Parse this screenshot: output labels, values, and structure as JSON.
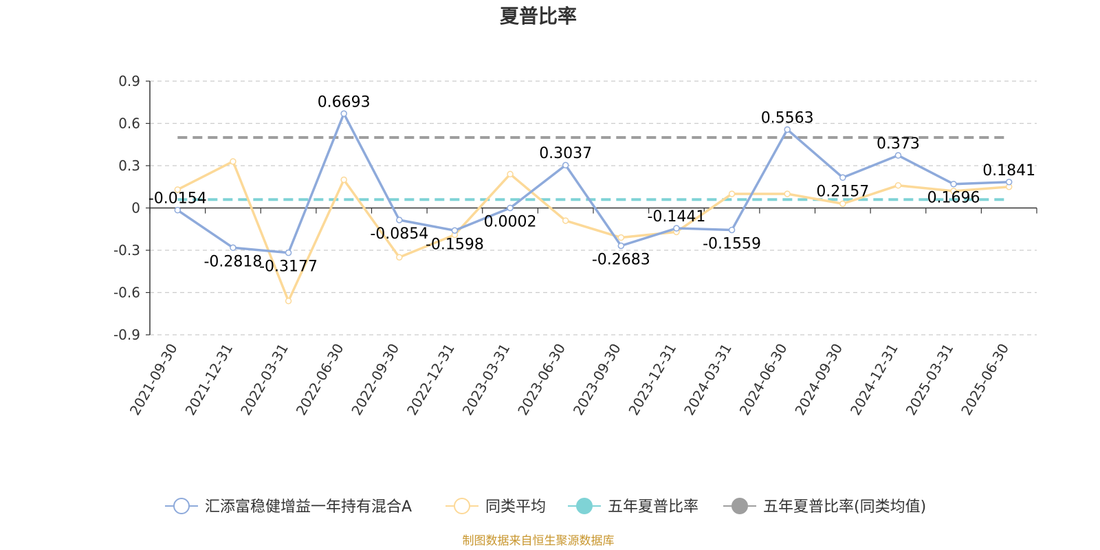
{
  "chart_data": {
    "type": "line",
    "title": "夏普比率",
    "categories": [
      "2021-09-30",
      "2021-12-31",
      "2022-03-31",
      "2022-06-30",
      "2022-09-30",
      "2022-12-31",
      "2023-03-31",
      "2023-06-30",
      "2023-09-30",
      "2023-12-31",
      "2024-03-31",
      "2024-06-30",
      "2024-09-30",
      "2024-12-31",
      "2025-03-31",
      "2025-06-30"
    ],
    "ylim": [
      -0.9,
      0.9
    ],
    "yticks": [
      "0.9",
      "0.6",
      "0.3",
      "0",
      "-0.3",
      "-0.6",
      "-0.9"
    ],
    "ytick_values": [
      0.9,
      0.6,
      0.3,
      0,
      -0.3,
      -0.6,
      -0.9
    ],
    "grid": true,
    "legend_position": "bottom",
    "series": [
      {
        "name": "汇添富稳健增益一年持有混合A",
        "color": "#8eaadb",
        "values": [
          -0.0154,
          -0.2818,
          -0.3177,
          0.6693,
          -0.0854,
          -0.1598,
          0.0002,
          0.3037,
          -0.2683,
          -0.1441,
          -0.1559,
          0.5563,
          0.2157,
          0.373,
          0.1696,
          0.1841
        ],
        "labels": [
          "-0.0154",
          "-0.2818",
          "-0.3177",
          "0.6693",
          "-0.0854",
          "-0.1598",
          "0.0002",
          "0.3037",
          "-0.2683",
          "-0.1441",
          "-0.1559",
          "0.5563",
          "0.2157",
          "0.373",
          "0.1696",
          "0.1841"
        ]
      },
      {
        "name": "同类平均",
        "color": "#fcd998",
        "values": [
          0.13,
          0.33,
          -0.66,
          0.2,
          -0.35,
          -0.19,
          0.24,
          -0.09,
          -0.21,
          -0.17,
          0.1,
          0.1,
          0.03,
          0.16,
          0.12,
          0.15
        ]
      },
      {
        "name": "五年夏普比率",
        "color": "#7fd3d6",
        "value": 0.06
      },
      {
        "name": "五年夏普比率(同类均值)",
        "color": "#9e9e9e",
        "value": 0.5
      }
    ]
  },
  "footer": {
    "source": "制图数据来自恒生聚源数据库"
  }
}
